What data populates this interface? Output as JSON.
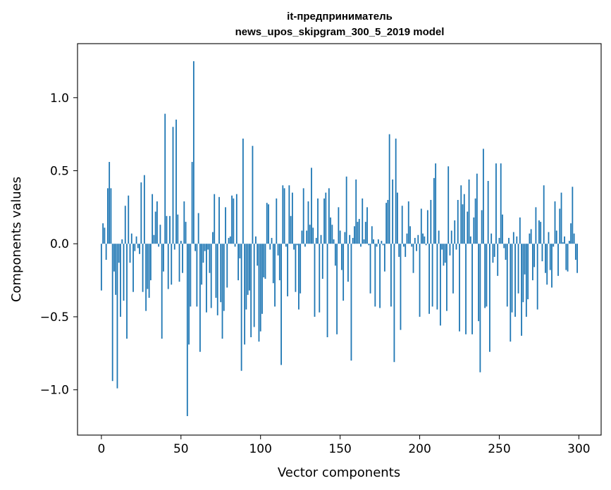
{
  "chart_data": {
    "type": "bar",
    "title_lines": [
      "it-предприниматель",
      "news_upos_skipgram_300_5_2019 model"
    ],
    "xlabel": "Vector components",
    "ylabel": "Components values",
    "xlim": [
      -15,
      314
    ],
    "ylim": [
      -1.31,
      1.37
    ],
    "xticks": [
      0,
      50,
      100,
      150,
      200,
      250,
      300
    ],
    "xtick_labels": [
      "0",
      "50",
      "100",
      "150",
      "200",
      "250",
      "300"
    ],
    "yticks": [
      -1.0,
      -0.5,
      0.0,
      0.5,
      1.0
    ],
    "ytick_labels": [
      "−1.0",
      "−0.5",
      "0.0",
      "0.5",
      "1.0"
    ],
    "grid": false,
    "bar_color": "#1f77b4",
    "values": [
      -0.32,
      0.14,
      0.11,
      -0.11,
      0.38,
      0.56,
      0.38,
      -0.94,
      -0.19,
      -0.35,
      -0.99,
      -0.13,
      -0.5,
      0.03,
      -0.39,
      0.26,
      -0.65,
      0.33,
      -0.13,
      0.07,
      -0.33,
      -0.05,
      0.05,
      -0.03,
      -0.07,
      0.42,
      -0.33,
      0.47,
      -0.46,
      -0.31,
      -0.37,
      -0.25,
      0.34,
      0.06,
      0.22,
      0.29,
      -0.02,
      0.13,
      -0.65,
      -0.19,
      0.89,
      0.19,
      -0.31,
      0.19,
      -0.28,
      0.8,
      -0.04,
      0.85,
      0.2,
      -0.26,
      0.02,
      -0.2,
      0.29,
      0.15,
      -1.18,
      -0.69,
      -0.43,
      0.56,
      1.25,
      -0.05,
      -0.43,
      0.21,
      -0.74,
      -0.28,
      -0.13,
      -0.05,
      -0.47,
      -0.04,
      -0.2,
      -0.44,
      0.08,
      0.34,
      -0.37,
      -0.49,
      0.32,
      -0.4,
      -0.65,
      -0.46,
      0.25,
      -0.3,
      0.04,
      0.05,
      0.33,
      0.31,
      -0.02,
      0.34,
      -0.25,
      -0.1,
      -0.87,
      0.72,
      -0.69,
      -0.45,
      -0.35,
      -0.32,
      -0.64,
      0.67,
      -0.57,
      0.05,
      -0.15,
      -0.67,
      -0.6,
      -0.48,
      -0.23,
      -0.24,
      0.28,
      0.27,
      -0.04,
      0.04,
      -0.27,
      -0.43,
      0.31,
      -0.08,
      -0.25,
      -0.83,
      0.4,
      0.38,
      -0.02,
      -0.36,
      0.4,
      0.19,
      0.35,
      -0.04,
      -0.33,
      -0.01,
      -0.45,
      -0.34,
      0.09,
      0.38,
      -0.02,
      0.09,
      0.29,
      0.13,
      0.52,
      0.11,
      -0.5,
      0.04,
      0.31,
      -0.47,
      0.06,
      -0.24,
      0.31,
      0.35,
      -0.64,
      0.38,
      0.18,
      0.13,
      0.03,
      -0.15,
      -0.62,
      0.25,
      0.09,
      -0.18,
      -0.39,
      0.08,
      0.46,
      -0.26,
      0.06,
      -0.8,
      0.04,
      0.12,
      0.44,
      0.15,
      0.17,
      -0.02,
      0.31,
      0.03,
      0.15,
      0.25,
      -0.01,
      -0.34,
      0.12,
      0.03,
      -0.43,
      -0.02,
      0.03,
      -0.44,
      0.02,
      -0.01,
      -0.19,
      0.28,
      0.3,
      0.75,
      -0.43,
      0.44,
      -0.81,
      0.72,
      0.35,
      -0.09,
      -0.59,
      0.26,
      -0.02,
      -0.09,
      0.07,
      0.29,
      0.12,
      -0.02,
      -0.2,
      0.04,
      -0.05,
      0.06,
      -0.5,
      0.24,
      0.07,
      0.05,
      -0.01,
      0.23,
      -0.48,
      0.3,
      -0.43,
      0.45,
      0.55,
      -0.45,
      0.09,
      -0.56,
      -0.04,
      -0.15,
      -0.13,
      -0.46,
      0.53,
      -0.08,
      0.09,
      -0.34,
      0.16,
      -0.04,
      0.3,
      -0.6,
      0.4,
      0.27,
      0.34,
      -0.62,
      0.22,
      0.44,
      0.05,
      -0.62,
      0.18,
      0.31,
      0.48,
      -0.53,
      -0.88,
      0.23,
      0.65,
      -0.44,
      -0.43,
      0.43,
      -0.74,
      0.07,
      -0.13,
      -0.09,
      0.55,
      -0.22,
      0.04,
      0.55,
      0.2,
      -0.03,
      -0.11,
      -0.43,
      0.04,
      -0.67,
      -0.47,
      0.08,
      -0.5,
      0.05,
      -0.34,
      0.18,
      -0.63,
      -0.4,
      -0.21,
      -0.5,
      -0.38,
      0.07,
      0.1,
      -0.25,
      -0.16,
      0.25,
      -0.45,
      0.16,
      0.15,
      -0.12,
      0.4,
      -0.2,
      -0.28,
      0.08,
      -0.18,
      -0.3,
      -0.02,
      0.29,
      0.09,
      -0.22,
      0.24,
      0.35,
      0.01,
      0.05,
      -0.18,
      -0.19,
      0.02,
      0.14,
      0.39,
      0.07,
      -0.11,
      -0.2
    ]
  }
}
